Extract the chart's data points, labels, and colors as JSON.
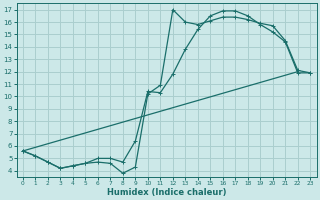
{
  "background_color": "#cce8e8",
  "grid_color": "#aacece",
  "line_color": "#1a6e6a",
  "xlabel": "Humidex (Indice chaleur)",
  "xlim": [
    -0.5,
    23.5
  ],
  "ylim": [
    3.5,
    17.5
  ],
  "xticks": [
    0,
    1,
    2,
    3,
    4,
    5,
    6,
    7,
    8,
    9,
    10,
    11,
    12,
    13,
    14,
    15,
    16,
    17,
    18,
    19,
    20,
    21,
    22,
    23
  ],
  "yticks": [
    4,
    5,
    6,
    7,
    8,
    9,
    10,
    11,
    12,
    13,
    14,
    15,
    16,
    17
  ],
  "curve1_x": [
    0,
    1,
    2,
    3,
    4,
    5,
    6,
    7,
    8,
    9,
    10,
    11,
    12,
    13,
    14,
    15,
    16,
    17,
    18,
    19,
    20,
    21,
    22,
    23
  ],
  "curve1_y": [
    5.6,
    5.2,
    4.7,
    4.2,
    4.4,
    4.6,
    4.7,
    4.6,
    3.8,
    4.3,
    10.2,
    10.9,
    17.0,
    16.0,
    15.8,
    16.1,
    16.4,
    16.4,
    16.2,
    15.9,
    15.7,
    14.5,
    12.1,
    11.9
  ],
  "curve2_x": [
    0,
    1,
    2,
    3,
    4,
    5,
    6,
    7,
    8,
    9,
    10,
    11,
    12,
    13,
    14,
    15,
    16,
    17,
    18,
    19,
    20,
    21,
    22,
    23
  ],
  "curve2_y": [
    5.6,
    5.2,
    4.7,
    4.2,
    4.4,
    4.6,
    5.0,
    5.0,
    4.7,
    6.4,
    10.4,
    10.3,
    11.8,
    13.8,
    15.4,
    16.5,
    16.9,
    16.9,
    16.5,
    15.8,
    15.2,
    14.4,
    11.9,
    11.9
  ],
  "curve3_x": [
    0,
    22
  ],
  "curve3_y": [
    5.6,
    12.0
  ]
}
